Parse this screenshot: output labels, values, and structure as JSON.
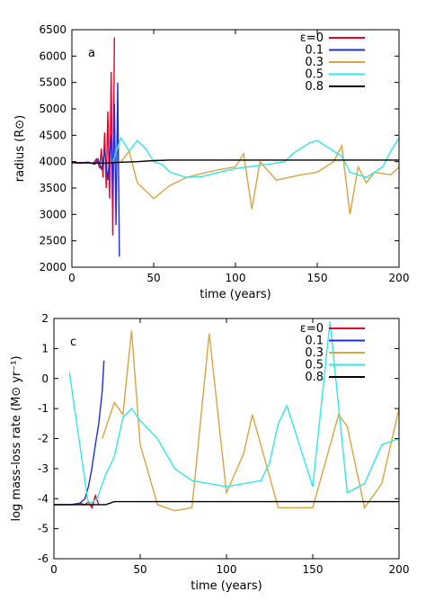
{
  "chart_data": [
    {
      "type": "line",
      "panel_label": "a",
      "xlabel": "time (years)",
      "ylabel": "radius (R⊙)",
      "xlim": [
        0,
        200
      ],
      "ylim": [
        2000,
        6500
      ],
      "xticks": [
        0,
        50,
        100,
        150,
        200
      ],
      "yticks": [
        2000,
        2500,
        3000,
        3500,
        4000,
        4500,
        5000,
        5500,
        6000,
        6500
      ],
      "legend_position": "top-right",
      "series": [
        {
          "name": "ε=0",
          "color": "#e8002a",
          "x": [
            0,
            5,
            10,
            13,
            15,
            17,
            18,
            19,
            20,
            21,
            22,
            23,
            24,
            25,
            26
          ],
          "y": [
            3980,
            3980,
            3990,
            3960,
            4050,
            3880,
            4250,
            3700,
            4550,
            3500,
            4950,
            3300,
            5700,
            2600,
            6350
          ]
        },
        {
          "name": "0.1",
          "color": "#1e2fd6",
          "x": [
            0,
            5,
            10,
            14,
            16,
            18,
            20,
            22,
            24,
            25,
            26,
            27,
            28,
            29
          ],
          "y": [
            3980,
            3970,
            3990,
            3950,
            4050,
            3850,
            4200,
            3650,
            4500,
            3300,
            5100,
            2800,
            5500,
            2200
          ]
        },
        {
          "name": "0.3",
          "color": "#d9a441",
          "x": [
            30,
            35,
            40,
            50,
            60,
            70,
            80,
            90,
            100,
            105,
            110,
            115,
            125,
            140,
            150,
            160,
            165,
            170,
            175,
            180,
            185,
            195,
            200
          ],
          "y": [
            4000,
            4200,
            3600,
            3300,
            3550,
            3700,
            3780,
            3850,
            3900,
            4150,
            3100,
            4000,
            3650,
            3750,
            3800,
            4000,
            4300,
            3000,
            3900,
            3600,
            3800,
            3750,
            3900
          ]
        },
        {
          "name": "0.5",
          "color": "#33e6e6",
          "x": [
            25,
            30,
            35,
            40,
            45,
            50,
            55,
            60,
            70,
            80,
            90,
            100,
            120,
            130,
            135,
            140,
            145,
            150,
            155,
            160,
            165,
            170,
            180,
            190,
            195,
            200
          ],
          "y": [
            4000,
            4450,
            4200,
            4400,
            4250,
            4000,
            3950,
            3800,
            3700,
            3720,
            3800,
            3870,
            3950,
            4000,
            4150,
            4250,
            4350,
            4400,
            4300,
            4200,
            4100,
            3800,
            3700,
            3900,
            4200,
            4450
          ]
        },
        {
          "name": "0.8",
          "color": "#000000",
          "x": [
            0,
            20,
            30,
            40,
            50,
            60,
            80,
            100,
            120,
            140,
            160,
            180,
            200
          ],
          "y": [
            3980,
            3970,
            3990,
            4000,
            4020,
            4030,
            4030,
            4030,
            4030,
            4030,
            4030,
            4030,
            4030
          ]
        }
      ]
    },
    {
      "type": "line",
      "panel_label": "c",
      "xlabel": "time (years)",
      "ylabel": "log mass-loss rate (M⊙ yr⁻¹)",
      "xlim": [
        0,
        200
      ],
      "ylim": [
        -6,
        2
      ],
      "xticks": [
        0,
        50,
        100,
        150,
        200
      ],
      "yticks": [
        -6,
        -5,
        -4,
        -3,
        -2,
        -1,
        0,
        1,
        2
      ],
      "legend_position": "top-right",
      "series": [
        {
          "name": "ε=0",
          "color": "#e8002a",
          "x": [
            0,
            10,
            15,
            18,
            20,
            22,
            24,
            26
          ],
          "y": [
            -4.2,
            -4.2,
            -4.15,
            -4.2,
            -4.1,
            -4.3,
            -3.9,
            -4.2
          ]
        },
        {
          "name": "0.1",
          "color": "#1e2fd6",
          "x": [
            0,
            10,
            15,
            18,
            20,
            22,
            24,
            26,
            28,
            29
          ],
          "y": [
            -4.2,
            -4.2,
            -4.15,
            -4.0,
            -3.6,
            -3.0,
            -2.2,
            -1.5,
            -0.4,
            0.6
          ]
        },
        {
          "name": "0.3",
          "color": "#d9a441",
          "x": [
            28,
            35,
            40,
            45,
            50,
            60,
            70,
            80,
            90,
            100,
            110,
            115,
            130,
            150,
            165,
            170,
            180,
            190,
            200
          ],
          "y": [
            -2.0,
            -0.8,
            -1.2,
            1.6,
            -2.2,
            -4.2,
            -4.4,
            -4.3,
            1.5,
            -3.8,
            -2.5,
            -1.2,
            -4.3,
            -4.3,
            -1.2,
            -1.6,
            -4.3,
            -3.5,
            -1.0
          ]
        },
        {
          "name": "0.5",
          "color": "#33e6e6",
          "x": [
            9,
            20,
            25,
            30,
            35,
            40,
            45,
            50,
            60,
            70,
            80,
            100,
            120,
            125,
            130,
            135,
            140,
            150,
            160,
            170,
            180,
            190,
            200
          ],
          "y": [
            0.2,
            -4.2,
            -4.0,
            -3.2,
            -2.6,
            -1.3,
            -1.0,
            -1.4,
            -2.0,
            -3.0,
            -3.4,
            -3.6,
            -3.4,
            -2.8,
            -1.5,
            -0.9,
            -1.8,
            -3.6,
            1.9,
            -3.8,
            -3.5,
            -2.2,
            -2.0
          ]
        },
        {
          "name": "0.8",
          "color": "#000000",
          "x": [
            0,
            20,
            30,
            35,
            40,
            60,
            80,
            100,
            120,
            140,
            160,
            180,
            200
          ],
          "y": [
            -4.2,
            -4.2,
            -4.2,
            -4.1,
            -4.1,
            -4.1,
            -4.1,
            -4.1,
            -4.1,
            -4.1,
            -4.1,
            -4.1,
            -4.1
          ]
        }
      ]
    }
  ]
}
